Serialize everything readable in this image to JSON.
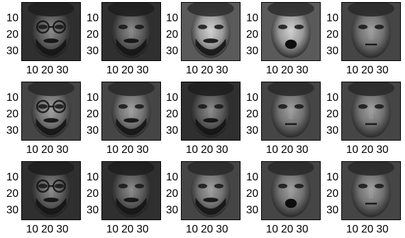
{
  "figure": {
    "grid": {
      "rows": 3,
      "cols": 5
    },
    "axis_ticks": {
      "y": [
        "10",
        "20",
        "30"
      ],
      "x": [
        "10",
        "20",
        "30"
      ]
    },
    "panels": [
      {
        "row": 0,
        "col": 0,
        "subject": "subject-a",
        "tone": "dark",
        "glasses": true,
        "beard": true,
        "mouth": "closed"
      },
      {
        "row": 0,
        "col": 1,
        "subject": "subject-b",
        "tone": "dark",
        "glasses": false,
        "beard": true,
        "mouth": "closed"
      },
      {
        "row": 0,
        "col": 2,
        "subject": "subject-c",
        "tone": "light",
        "glasses": false,
        "beard": true,
        "mouth": "closed"
      },
      {
        "row": 0,
        "col": 3,
        "subject": "subject-d",
        "tone": "light",
        "glasses": false,
        "beard": false,
        "mouth": "open"
      },
      {
        "row": 0,
        "col": 4,
        "subject": "subject-e",
        "tone": "medium",
        "glasses": false,
        "beard": false,
        "mouth": "closed"
      },
      {
        "row": 1,
        "col": 0,
        "subject": "subject-a",
        "tone": "medium",
        "glasses": true,
        "beard": true,
        "mouth": "closed"
      },
      {
        "row": 1,
        "col": 1,
        "subject": "subject-b",
        "tone": "medium",
        "glasses": false,
        "beard": true,
        "mouth": "closed"
      },
      {
        "row": 1,
        "col": 2,
        "subject": "subject-c",
        "tone": "dark",
        "glasses": false,
        "beard": true,
        "mouth": "closed"
      },
      {
        "row": 1,
        "col": 3,
        "subject": "subject-d",
        "tone": "medium",
        "glasses": false,
        "beard": false,
        "mouth": "closed"
      },
      {
        "row": 1,
        "col": 4,
        "subject": "subject-e",
        "tone": "medium",
        "glasses": false,
        "beard": false,
        "mouth": "closed"
      },
      {
        "row": 2,
        "col": 0,
        "subject": "subject-a",
        "tone": "dark",
        "glasses": true,
        "beard": true,
        "mouth": "closed"
      },
      {
        "row": 2,
        "col": 1,
        "subject": "subject-b",
        "tone": "dark",
        "glasses": false,
        "beard": true,
        "mouth": "closed"
      },
      {
        "row": 2,
        "col": 2,
        "subject": "subject-c",
        "tone": "medium",
        "glasses": false,
        "beard": true,
        "mouth": "closed"
      },
      {
        "row": 2,
        "col": 3,
        "subject": "subject-d",
        "tone": "medium",
        "glasses": false,
        "beard": false,
        "mouth": "open"
      },
      {
        "row": 2,
        "col": 4,
        "subject": "subject-e",
        "tone": "medium",
        "glasses": false,
        "beard": false,
        "mouth": "closed"
      }
    ],
    "colors": {
      "axis": "#000000",
      "background": "#ffffff"
    }
  }
}
